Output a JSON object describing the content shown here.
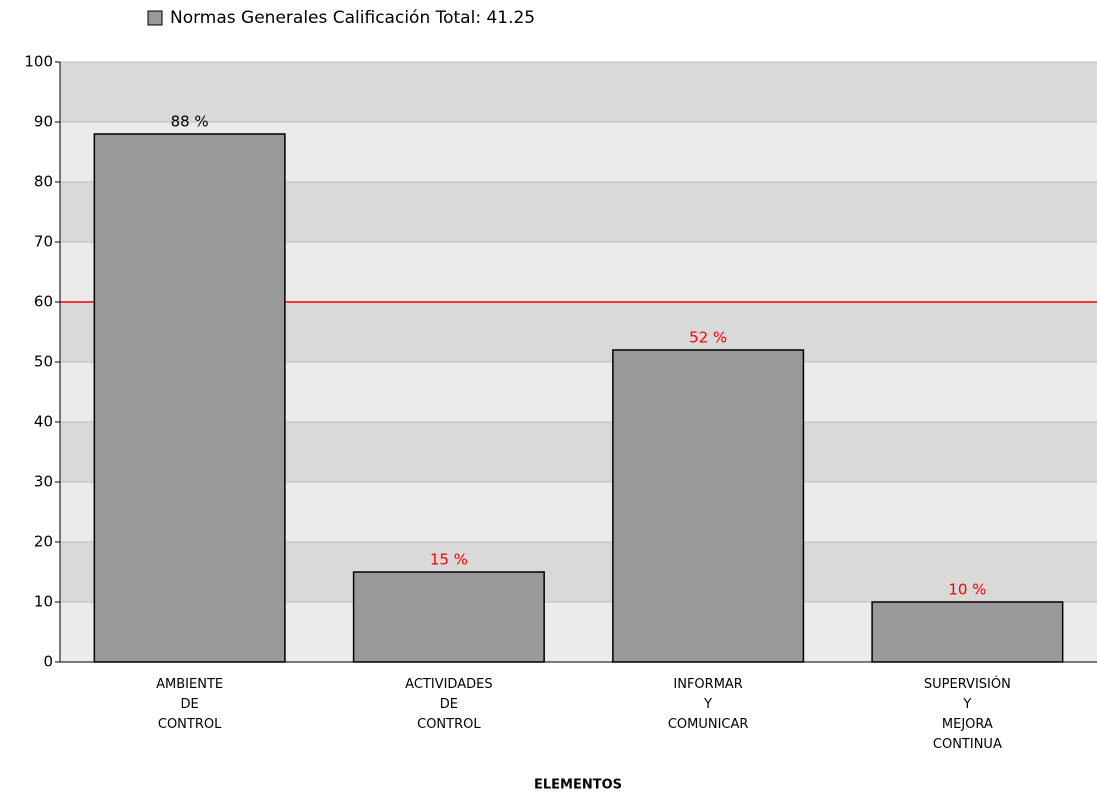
{
  "chart_data": {
    "type": "bar",
    "x_label": "ELEMENTOS",
    "categories": [
      [
        "AMBIENTE",
        "DE",
        "CONTROL"
      ],
      [
        "ACTIVIDADES",
        "DE",
        "CONTROL"
      ],
      [
        "INFORMAR",
        "Y",
        "COMUNICAR"
      ],
      [
        "SUPERVISIÓN",
        "Y",
        "MEJORA",
        "CONTINUA"
      ]
    ],
    "series": [
      {
        "name": "Normas Generales Calificación Total: 41.25",
        "color": "#999999",
        "values": [
          88,
          15,
          52,
          10
        ],
        "value_labels": [
          "88 %",
          "15 %",
          "52 %",
          "10 %"
        ]
      }
    ],
    "reference_line": {
      "value": 60,
      "color": "#ff0000"
    },
    "below_reference_label_color": "#ff0000",
    "ylim": [
      0,
      100
    ],
    "yticks": [
      0,
      10,
      20,
      30,
      40,
      50,
      60,
      70,
      80,
      90,
      100
    ],
    "grid": true,
    "band_colors": [
      "#ebebeb",
      "#d9d9d9"
    ]
  }
}
